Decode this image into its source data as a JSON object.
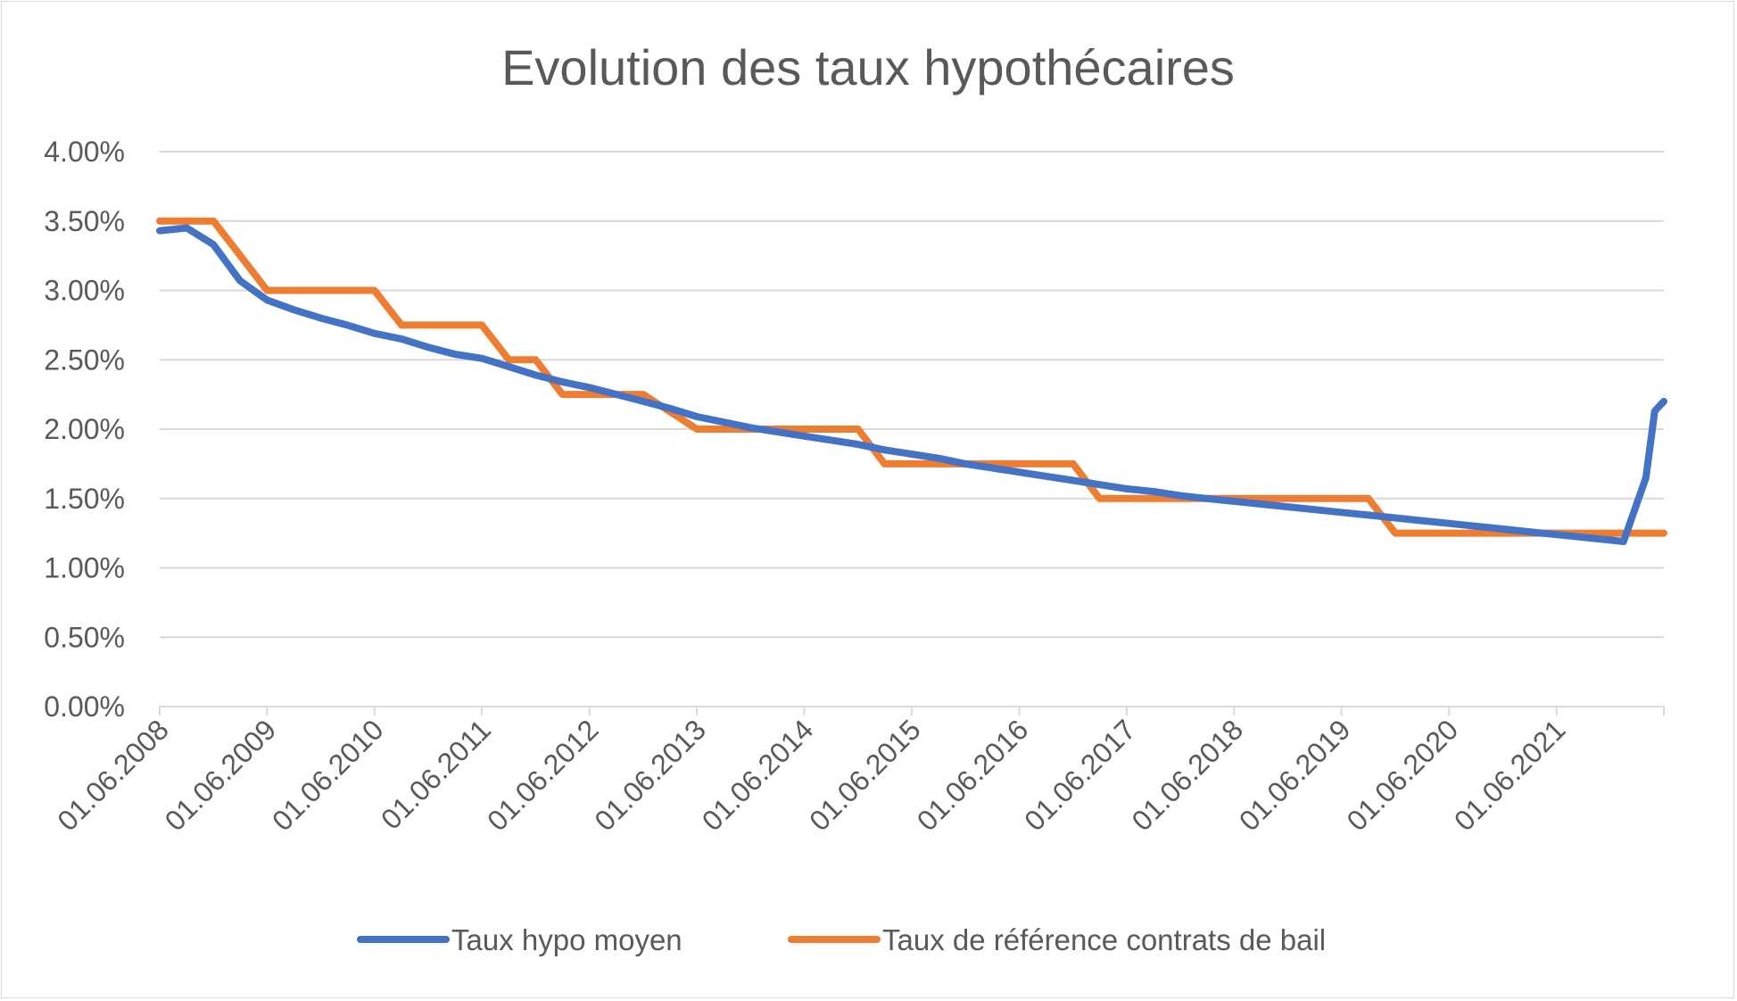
{
  "chart_data": {
    "type": "line",
    "title": "Evolution des taux hypothécaires",
    "xlabel": "",
    "ylabel": "",
    "x_ticks": [
      "01.06.2008",
      "01.06.2009",
      "01.06.2010",
      "01.06.2011",
      "01.06.2012",
      "01.06.2013",
      "01.06.2014",
      "01.06.2015",
      "01.06.2016",
      "01.06.2017",
      "01.06.2018",
      "01.06.2019",
      "01.06.2020",
      "01.06.2021"
    ],
    "x_range": [
      "2008-06-01",
      "2022-06-01"
    ],
    "y_ticks": [
      "0.00%",
      "0.50%",
      "1.00%",
      "1.50%",
      "2.00%",
      "2.50%",
      "3.00%",
      "3.50%",
      "4.00%"
    ],
    "ylim": [
      0,
      0.04
    ],
    "grid": true,
    "legend_position": "bottom",
    "series": [
      {
        "name": "Taux hypo moyen",
        "color": "#4472c4",
        "points": [
          [
            "2008-06-01",
            0.0343
          ],
          [
            "2008-09-01",
            0.0345
          ],
          [
            "2008-12-01",
            0.0333
          ],
          [
            "2009-03-01",
            0.0307
          ],
          [
            "2009-06-01",
            0.0293
          ],
          [
            "2009-09-01",
            0.0286
          ],
          [
            "2009-12-01",
            0.028
          ],
          [
            "2010-03-01",
            0.0275
          ],
          [
            "2010-06-01",
            0.0269
          ],
          [
            "2010-09-01",
            0.0265
          ],
          [
            "2010-12-01",
            0.0259
          ],
          [
            "2011-03-01",
            0.0254
          ],
          [
            "2011-06-01",
            0.0251
          ],
          [
            "2011-09-01",
            0.0245
          ],
          [
            "2011-12-01",
            0.0239
          ],
          [
            "2012-03-01",
            0.0234
          ],
          [
            "2012-06-01",
            0.023
          ],
          [
            "2012-09-01",
            0.0225
          ],
          [
            "2012-12-01",
            0.022
          ],
          [
            "2013-03-01",
            0.0215
          ],
          [
            "2013-06-01",
            0.0209
          ],
          [
            "2013-09-01",
            0.0205
          ],
          [
            "2013-12-01",
            0.0201
          ],
          [
            "2014-03-01",
            0.0198
          ],
          [
            "2014-06-01",
            0.0195
          ],
          [
            "2014-09-01",
            0.0192
          ],
          [
            "2014-12-01",
            0.0189
          ],
          [
            "2015-03-01",
            0.0185
          ],
          [
            "2015-06-01",
            0.0182
          ],
          [
            "2015-09-01",
            0.0179
          ],
          [
            "2015-12-01",
            0.0175
          ],
          [
            "2016-03-01",
            0.0172
          ],
          [
            "2016-06-01",
            0.0169
          ],
          [
            "2016-09-01",
            0.0166
          ],
          [
            "2016-12-01",
            0.0163
          ],
          [
            "2017-03-01",
            0.016
          ],
          [
            "2017-06-01",
            0.0157
          ],
          [
            "2017-09-01",
            0.0155
          ],
          [
            "2017-12-01",
            0.0152
          ],
          [
            "2018-03-01",
            0.015
          ],
          [
            "2018-06-01",
            0.0148
          ],
          [
            "2018-09-01",
            0.0146
          ],
          [
            "2018-12-01",
            0.0144
          ],
          [
            "2019-03-01",
            0.0142
          ],
          [
            "2019-06-01",
            0.014
          ],
          [
            "2019-09-01",
            0.0138
          ],
          [
            "2019-12-01",
            0.0136
          ],
          [
            "2020-03-01",
            0.0134
          ],
          [
            "2020-06-01",
            0.0132
          ],
          [
            "2020-09-01",
            0.013
          ],
          [
            "2020-12-01",
            0.0128
          ],
          [
            "2021-03-01",
            0.0126
          ],
          [
            "2021-06-01",
            0.0124
          ],
          [
            "2021-09-01",
            0.0122
          ],
          [
            "2021-12-01",
            0.012
          ],
          [
            "2022-01-15",
            0.0119
          ],
          [
            "2022-04-01",
            0.0165
          ],
          [
            "2022-05-01",
            0.0213
          ],
          [
            "2022-06-01",
            0.022
          ]
        ]
      },
      {
        "name": "Taux de référence contrats de bail",
        "color": "#ed7d31",
        "points": [
          [
            "2008-06-01",
            0.035
          ],
          [
            "2008-12-01",
            0.035
          ],
          [
            "2009-06-01",
            0.03
          ],
          [
            "2010-06-01",
            0.03
          ],
          [
            "2010-09-01",
            0.0275
          ],
          [
            "2011-06-01",
            0.0275
          ],
          [
            "2011-09-01",
            0.025
          ],
          [
            "2011-12-01",
            0.025
          ],
          [
            "2012-03-01",
            0.0225
          ],
          [
            "2012-09-01",
            0.0225
          ],
          [
            "2012-12-01",
            0.0225
          ],
          [
            "2013-06-01",
            0.02
          ],
          [
            "2014-06-01",
            0.02
          ],
          [
            "2014-12-01",
            0.02
          ],
          [
            "2015-03-01",
            0.0175
          ],
          [
            "2016-06-01",
            0.0175
          ],
          [
            "2016-12-01",
            0.0175
          ],
          [
            "2017-03-01",
            0.015
          ],
          [
            "2018-06-01",
            0.015
          ],
          [
            "2019-09-01",
            0.015
          ],
          [
            "2019-12-01",
            0.0125
          ],
          [
            "2022-06-01",
            0.0125
          ]
        ]
      }
    ]
  }
}
